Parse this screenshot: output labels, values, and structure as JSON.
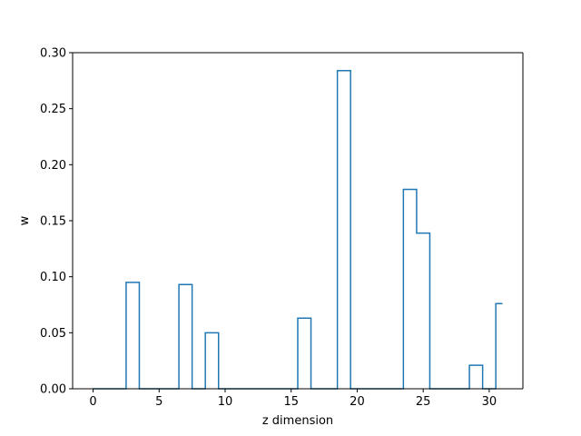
{
  "chart_data": {
    "type": "line",
    "drawstyle": "steps-mid",
    "title": "",
    "xlabel": "z dimension",
    "ylabel": "w",
    "xlim": [
      -1.55,
      32.55
    ],
    "ylim": [
      0,
      0.3
    ],
    "xticks": [
      0,
      5,
      10,
      15,
      20,
      25,
      30
    ],
    "yticks": [
      0.0,
      0.05,
      0.1,
      0.15,
      0.2,
      0.25,
      0.3
    ],
    "ytick_labels": [
      "0.00",
      "0.05",
      "0.10",
      "0.15",
      "0.20",
      "0.25",
      "0.30"
    ],
    "grid": false,
    "legend": "none",
    "series": [
      {
        "color": "#1f77b4",
        "x": [
          0,
          1,
          2,
          3,
          4,
          5,
          6,
          7,
          8,
          9,
          10,
          11,
          12,
          13,
          14,
          15,
          16,
          17,
          18,
          19,
          20,
          21,
          22,
          23,
          24,
          25,
          26,
          27,
          28,
          29,
          30,
          31
        ],
        "y": [
          0,
          0,
          0,
          0.095,
          0,
          0,
          0,
          0.093,
          0,
          0.05,
          0,
          0,
          0,
          0,
          0,
          0,
          0.063,
          0,
          0,
          0.284,
          0,
          0,
          0,
          0,
          0.178,
          0.139,
          0,
          0,
          0,
          0.021,
          0,
          0.076
        ]
      }
    ]
  }
}
